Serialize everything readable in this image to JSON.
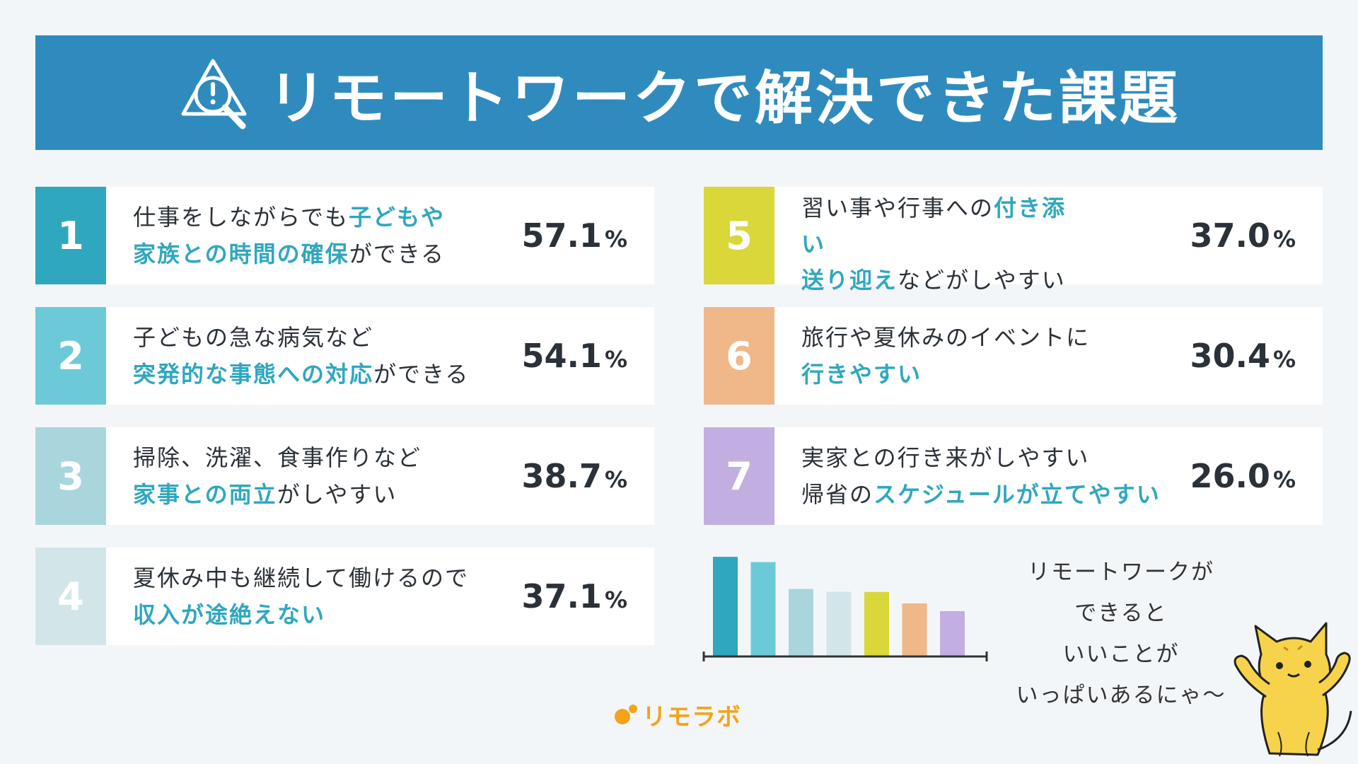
{
  "header": {
    "title": "リモートワークで解決できた課題",
    "icon": "search-alert-icon"
  },
  "items": [
    {
      "rank": "1",
      "color": "#2fa7be",
      "line1": [
        {
          "t": "仕事をしながらでも",
          "hl": false
        },
        {
          "t": "子どもや",
          "hl": true
        }
      ],
      "line2": [
        {
          "t": "家族との時間の確保",
          "hl": true
        },
        {
          "t": "ができる",
          "hl": false
        }
      ],
      "value": "57.1",
      "unit": "%"
    },
    {
      "rank": "2",
      "color": "#6ccad8",
      "line1": [
        {
          "t": "子どもの急な病気など",
          "hl": false
        }
      ],
      "line2": [
        {
          "t": "突発的な事態への対応",
          "hl": true
        },
        {
          "t": "ができる",
          "hl": false
        }
      ],
      "value": "54.1",
      "unit": "%"
    },
    {
      "rank": "3",
      "color": "#a9d6dd",
      "line1": [
        {
          "t": "掃除、洗濯、食事作りなど",
          "hl": false
        }
      ],
      "line2": [
        {
          "t": "家事との両立",
          "hl": true
        },
        {
          "t": "がしやすい",
          "hl": false
        }
      ],
      "value": "38.7",
      "unit": "%"
    },
    {
      "rank": "4",
      "color": "#d2e6ea",
      "line1": [
        {
          "t": "夏休み中も継続して働けるので",
          "hl": false
        }
      ],
      "line2": [
        {
          "t": "収入が途絶えない",
          "hl": true
        }
      ],
      "value": "37.1",
      "unit": "%"
    },
    {
      "rank": "5",
      "color": "#d9d73a",
      "line1": [
        {
          "t": "習い事や行事への",
          "hl": false
        },
        {
          "t": "付き添",
          "hl": true
        }
      ],
      "line2": [
        {
          "t": "い",
          "hl": true
        }
      ],
      "line3": [
        {
          "t": "送り迎え",
          "hl": true
        },
        {
          "t": "などがしやすい",
          "hl": false
        }
      ],
      "value": "37.0",
      "unit": "%"
    },
    {
      "rank": "6",
      "color": "#f0b788",
      "line1": [
        {
          "t": "旅行や夏休みのイベントに",
          "hl": false
        }
      ],
      "line2": [
        {
          "t": "行きやすい",
          "hl": true
        }
      ],
      "value": "30.4",
      "unit": "%"
    },
    {
      "rank": "7",
      "color": "#c2aee0",
      "line1": [
        {
          "t": "実家との行き来がしやすい",
          "hl": false
        }
      ],
      "line2": [
        {
          "t": "帰省の",
          "hl": false
        },
        {
          "t": "スケジュールが立てやすい",
          "hl": true
        }
      ],
      "value": "26.0",
      "unit": "%"
    }
  ],
  "chart_data": {
    "type": "bar",
    "categories": [
      "1",
      "2",
      "3",
      "4",
      "5",
      "6",
      "7"
    ],
    "values": [
      57.1,
      54.1,
      38.7,
      37.1,
      37.0,
      30.4,
      26.0
    ],
    "colors": [
      "#2fa7be",
      "#6ccad8",
      "#a9d6dd",
      "#d2e6ea",
      "#d9d73a",
      "#f0b788",
      "#c2aee0"
    ],
    "ylim": [
      0,
      60
    ],
    "grid": false
  },
  "speech": [
    "リモートワークが",
    "できると",
    "いいことが",
    "いっぱいあるにゃ〜"
  ],
  "brand": {
    "name": "リモラボ",
    "color": "#f2a51a"
  },
  "mascot": "cat-mascot-icon"
}
